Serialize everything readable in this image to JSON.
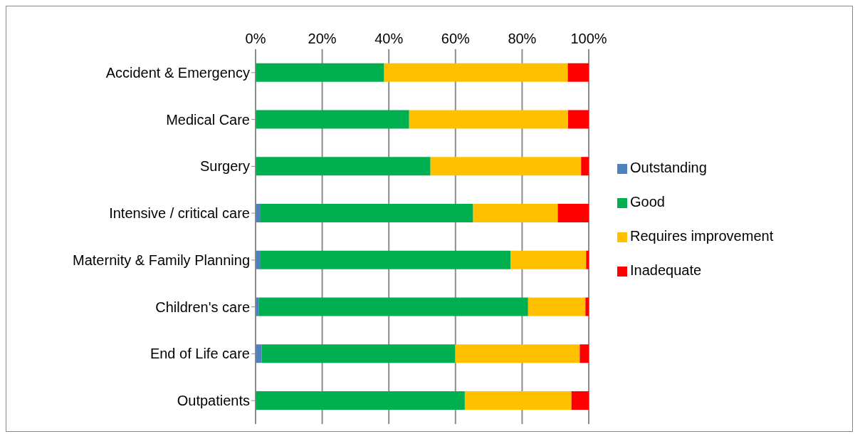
{
  "chart_data": {
    "type": "bar",
    "orientation": "horizontal",
    "stacked": true,
    "categories": [
      "Accident & Emergency",
      "Medical Care",
      "Surgery",
      "Intensive / critical care",
      "Maternity & Family Planning",
      "Children's care",
      "End of Life care",
      "Outpatients"
    ],
    "series": [
      {
        "name": "Outstanding",
        "color": "#4f81bd",
        "values": [
          0,
          0,
          0,
          1.3,
          1.5,
          0.9,
          1.8,
          0
        ]
      },
      {
        "name": "Good",
        "color": "#00b050",
        "values": [
          38.6,
          46.1,
          52.5,
          64.0,
          75.0,
          80.9,
          58.1,
          62.8
        ]
      },
      {
        "name": "Requires improvement",
        "color": "#ffc000",
        "values": [
          55.1,
          47.7,
          45.2,
          25.4,
          22.7,
          17.2,
          37.4,
          32.0
        ]
      },
      {
        "name": "Inadequate",
        "color": "#ff0000",
        "values": [
          6.3,
          6.2,
          2.3,
          9.3,
          0.8,
          1.0,
          2.7,
          5.2
        ]
      }
    ],
    "xlim": [
      0,
      100
    ],
    "xticks": [
      {
        "value": 0,
        "label": "0%"
      },
      {
        "value": 20,
        "label": "20%"
      },
      {
        "value": 40,
        "label": "40%"
      },
      {
        "value": 60,
        "label": "60%"
      },
      {
        "value": 80,
        "label": "80%"
      },
      {
        "value": 100,
        "label": "100%"
      }
    ],
    "grid": "x",
    "legend": "right"
  }
}
